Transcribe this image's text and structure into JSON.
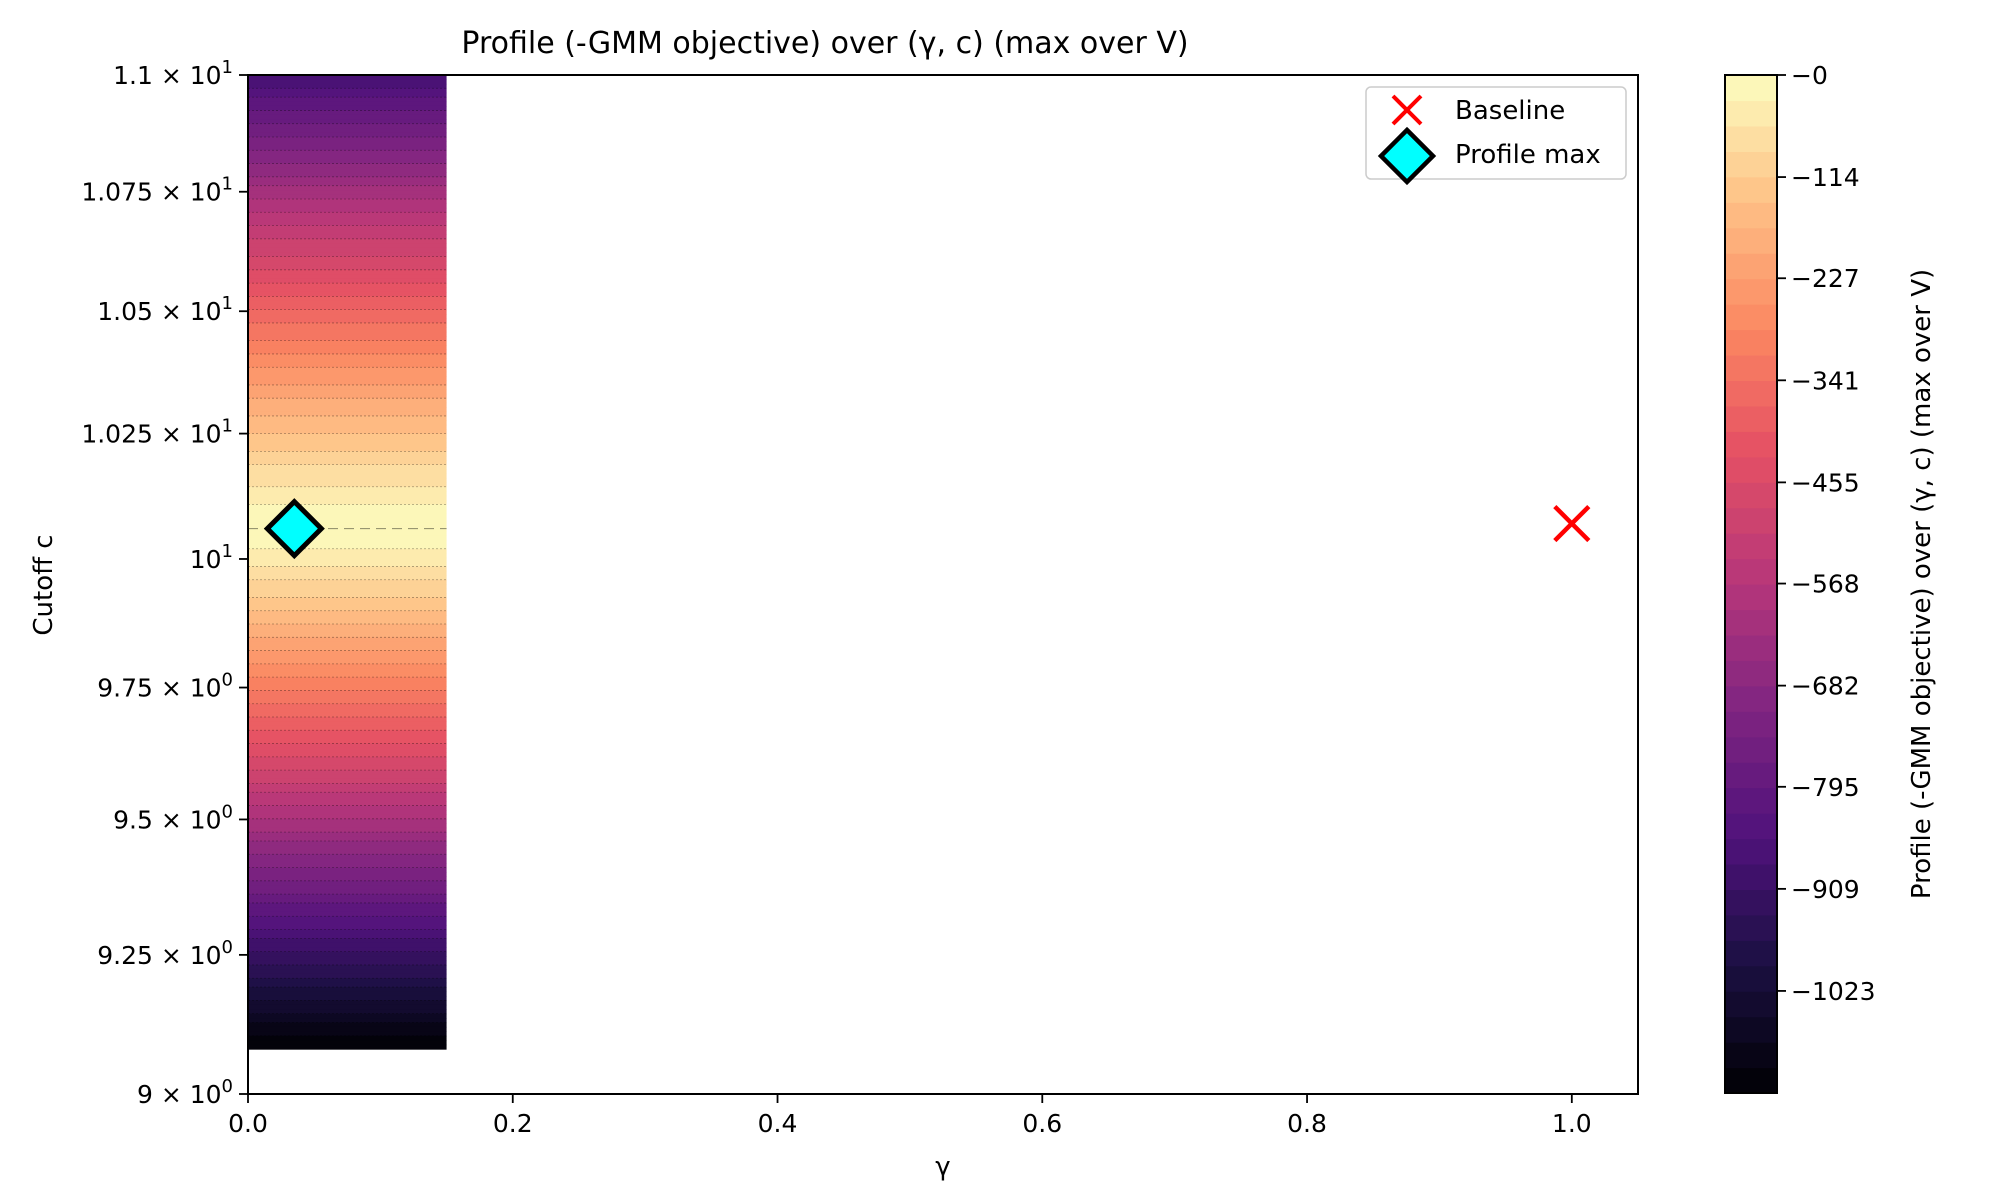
{
  "chart_data": {
    "type": "heatmap",
    "title": "Profile (-GMM objective) over (γ, c) (max over V)",
    "xlabel": "γ",
    "ylabel": "Cutoff c",
    "xlim": [
      0.0,
      1.05
    ],
    "ylim": [
      9.0,
      11.0
    ],
    "y_scale": "log",
    "x_ticks": [
      0.0,
      0.2,
      0.4,
      0.6,
      0.8,
      1.0
    ],
    "x_tick_labels": [
      "0.0",
      "0.2",
      "0.4",
      "0.6",
      "0.8",
      "1.0"
    ],
    "y_ticks": [
      {
        "value": 9.0,
        "mant": "9",
        "exp": "0"
      },
      {
        "value": 9.25,
        "mant": "9.25",
        "exp": "0"
      },
      {
        "value": 9.5,
        "mant": "9.5",
        "exp": "0"
      },
      {
        "value": 9.75,
        "mant": "9.75",
        "exp": "0"
      },
      {
        "value": 10.0,
        "mant": "",
        "exp": "1"
      },
      {
        "value": 10.25,
        "mant": "1.025",
        "exp": "1"
      },
      {
        "value": 10.5,
        "mant": "1.05",
        "exp": "1"
      },
      {
        "value": 10.75,
        "mant": "1.075",
        "exp": "1"
      },
      {
        "value": 11.0,
        "mant": "1.1",
        "exp": "1"
      }
    ],
    "surface": {
      "gamma_range": [
        0.0,
        0.15
      ],
      "c_range": [
        9.08,
        11.0
      ],
      "peak_c": 10.06,
      "value_at_c_bottom": -1140,
      "value_at_c_top": -880
    },
    "colorbar": {
      "label": "Profile (-GMM objective) over (γ, c) (max over V)",
      "range": [
        -1137,
        0
      ],
      "levels": 40,
      "ticks": [
        0,
        -114,
        -227,
        -341,
        -455,
        -568,
        -682,
        -795,
        -909,
        -1023
      ],
      "tick_labels": [
        "−0",
        "−114",
        "−227",
        "−341",
        "−455",
        "−568",
        "−682",
        "−795",
        "−909",
        "−1023"
      ]
    },
    "markers": [
      {
        "name": "Baseline",
        "gamma": 1.0,
        "c": 10.07,
        "symbol": "x",
        "color": "#ff0000"
      },
      {
        "name": "Profile max",
        "gamma": 0.035,
        "c": 10.06,
        "symbol": "D",
        "color": "#00ffff"
      }
    ],
    "legend": {
      "position": "top-right",
      "entries": [
        "Baseline",
        "Profile max"
      ]
    },
    "grid": false,
    "colormap": "magma"
  }
}
